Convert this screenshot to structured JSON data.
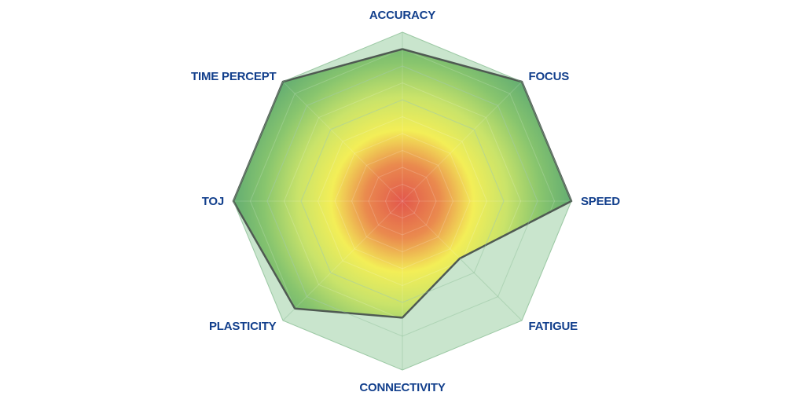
{
  "chart_data": {
    "type": "radar",
    "title": "",
    "axes": [
      "ACCURACY",
      "FOCUS",
      "SPEED",
      "FATIGUE",
      "CONNECTIVITY",
      "PLASTICITY",
      "TOJ",
      "TIME PERCEPT"
    ],
    "series": [
      {
        "values": [
          90,
          100,
          100,
          48,
          69,
          90,
          100,
          100
        ]
      }
    ],
    "range": [
      0,
      100
    ],
    "rings": 10,
    "grid": true,
    "colors": {
      "outer_fill": "#b7dcbc",
      "grid_line": "#9fc3a6",
      "series_outline": "#4f5a52",
      "gradient_center": "#e2574c",
      "gradient_mid": "#f3ee57",
      "gradient_edge": "#63ad72",
      "label": "#123f8c"
    }
  }
}
